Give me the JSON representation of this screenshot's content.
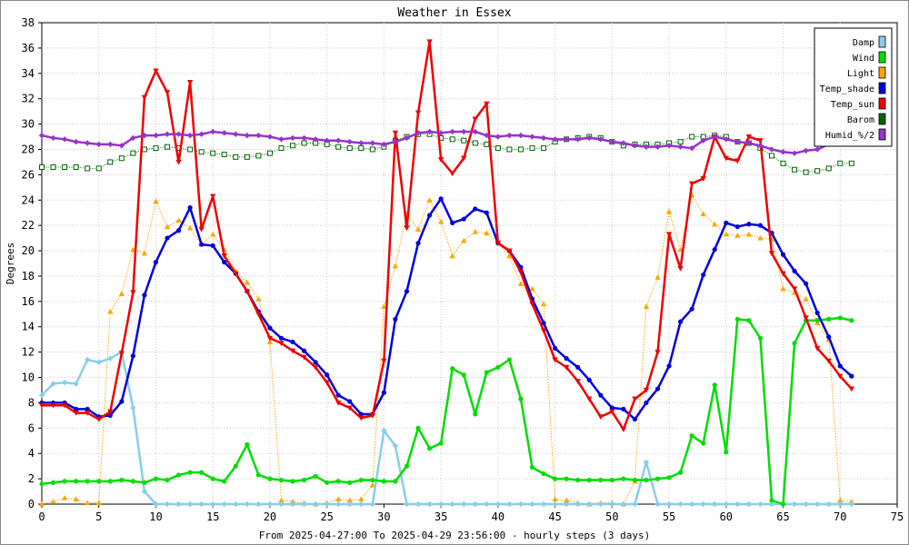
{
  "chart_data": {
    "type": "line",
    "title": "Weather in Essex",
    "xlabel": "From 2025-04-27:00 To 2025-04-29 23:56:00 - hourly steps (3 days)",
    "ylabel": "Degrees",
    "xlim": [
      0,
      75
    ],
    "ylim": [
      0,
      38
    ],
    "xticks": [
      0,
      5,
      10,
      15,
      20,
      25,
      30,
      35,
      40,
      45,
      50,
      55,
      60,
      65,
      70,
      75
    ],
    "yticks": [
      0,
      2,
      4,
      6,
      8,
      10,
      12,
      14,
      16,
      18,
      20,
      22,
      24,
      26,
      28,
      30,
      32,
      34,
      36,
      38
    ],
    "grid": true,
    "legend_position": "top-right",
    "x": [
      0,
      1,
      2,
      3,
      4,
      5,
      6,
      7,
      8,
      9,
      10,
      11,
      12,
      13,
      14,
      15,
      16,
      17,
      18,
      19,
      20,
      21,
      22,
      23,
      24,
      25,
      26,
      27,
      28,
      29,
      30,
      31,
      32,
      33,
      34,
      35,
      36,
      37,
      38,
      39,
      40,
      41,
      42,
      43,
      44,
      45,
      46,
      47,
      48,
      49,
      50,
      51,
      52,
      53,
      54,
      55,
      56,
      57,
      58,
      59,
      60,
      61,
      62,
      63,
      64,
      65,
      66,
      67,
      68,
      69,
      70,
      71
    ],
    "series": [
      {
        "name": "Damp",
        "color": "#87ceeb",
        "marker": "diamond",
        "values": [
          8.6,
          9.5,
          9.6,
          9.5,
          11.4,
          11.2,
          11.5,
          12.0,
          7.6,
          1.0,
          0,
          0,
          0,
          0,
          0,
          0,
          0,
          0,
          0,
          0,
          0,
          0,
          0,
          0,
          0,
          0,
          0,
          0,
          0,
          0,
          5.8,
          4.6,
          0,
          0,
          0,
          0,
          0,
          0,
          0,
          0,
          0,
          0,
          0,
          0,
          0,
          0,
          0,
          0,
          0,
          0,
          0,
          0,
          0,
          3.3,
          0,
          0,
          0,
          0,
          0,
          0,
          0,
          0,
          0,
          0,
          0,
          0,
          0,
          0,
          0,
          0,
          0,
          0
        ]
      },
      {
        "name": "Wind",
        "color": "#00dd00",
        "marker": "circle",
        "values": [
          1.6,
          1.7,
          1.8,
          1.8,
          1.8,
          1.8,
          1.8,
          1.9,
          1.8,
          1.7,
          2.0,
          1.9,
          2.3,
          2.5,
          2.5,
          2.0,
          1.8,
          3.0,
          4.7,
          2.3,
          2.0,
          1.9,
          1.8,
          1.9,
          2.2,
          1.7,
          1.8,
          1.7,
          1.9,
          1.9,
          1.8,
          1.8,
          3.0,
          6.0,
          4.4,
          4.8,
          10.7,
          10.2,
          7.1,
          10.4,
          10.8,
          11.4,
          8.3,
          2.9,
          2.4,
          2.0,
          2.0,
          1.9,
          1.9,
          1.9,
          1.9,
          2.0,
          1.9,
          1.9,
          2.0,
          2.1,
          2.5,
          5.4,
          4.8,
          9.4,
          4.1,
          14.6,
          14.5,
          13.1,
          0.3,
          0.0,
          12.7,
          14.5,
          14.5,
          14.6,
          14.7,
          14.5
        ]
      },
      {
        "name": "Light",
        "color": "#ffa500",
        "marker": "triangle",
        "values": [
          0,
          0.2,
          0.5,
          0.4,
          0.1,
          0.1,
          15.2,
          16.6,
          20.1,
          19.8,
          23.9,
          21.9,
          22.4,
          21.8,
          20.5,
          21.3,
          20.1,
          18.4,
          17.5,
          16.2,
          12.8,
          0.3,
          0.2,
          0.1,
          0,
          0.1,
          0.4,
          0.3,
          0.4,
          1.5,
          15.6,
          18.8,
          22.9,
          21.7,
          24.0,
          22.3,
          19.6,
          20.8,
          21.5,
          21.4,
          20.7,
          19.6,
          17.4,
          17.0,
          15.8,
          0.4,
          0.3,
          0.1,
          0,
          0.1,
          0.1,
          0,
          1.8,
          15.6,
          17.9,
          23.1,
          20.1,
          24.4,
          22.9,
          22.1,
          21.3,
          21.2,
          21.3,
          21.0,
          20.9,
          17.0,
          16.7,
          16.2,
          14.3,
          13.0,
          0.3,
          0.2
        ]
      },
      {
        "name": "Temp_shade",
        "color": "#0000dd",
        "marker": "circle",
        "values": [
          8.0,
          8.0,
          8.0,
          7.5,
          7.5,
          6.9,
          7.0,
          8.1,
          11.7,
          16.5,
          19.1,
          21.0,
          21.6,
          23.4,
          20.5,
          20.4,
          19.1,
          18.2,
          16.8,
          15.2,
          13.9,
          13.1,
          12.8,
          12.1,
          11.2,
          10.2,
          8.6,
          8.1,
          7.1,
          7.1,
          8.8,
          14.6,
          16.8,
          20.6,
          22.8,
          24.1,
          22.2,
          22.5,
          23.3,
          23.0,
          20.6,
          20.0,
          18.7,
          16.2,
          14.3,
          12.3,
          11.5,
          10.8,
          9.8,
          8.6,
          7.6,
          7.5,
          6.7,
          8.0,
          9.1,
          10.9,
          14.4,
          15.4,
          18.1,
          20.1,
          22.2,
          21.9,
          22.1,
          22.0,
          21.4,
          19.7,
          18.4,
          17.4,
          15.1,
          13.2,
          10.9,
          10.1
        ]
      },
      {
        "name": "Temp_sun",
        "color": "#ee0000",
        "marker": "triangle-down",
        "values": [
          7.8,
          7.8,
          7.8,
          7.2,
          7.2,
          6.7,
          7.3,
          11.9,
          16.7,
          32.1,
          34.2,
          32.5,
          27.0,
          33.3,
          21.7,
          24.3,
          19.6,
          18.2,
          16.8,
          15.0,
          13.1,
          12.7,
          12.1,
          11.6,
          10.8,
          9.6,
          8.0,
          7.6,
          6.8,
          7.0,
          11.3,
          29.3,
          21.8,
          30.9,
          36.5,
          27.2,
          26.1,
          27.3,
          30.4,
          31.6,
          20.6,
          20.0,
          18.3,
          15.8,
          13.7,
          11.4,
          10.8,
          9.7,
          8.3,
          6.9,
          7.3,
          5.9,
          8.3,
          9.0,
          12.0,
          21.3,
          18.6,
          25.3,
          25.7,
          29.0,
          27.3,
          27.1,
          29.0,
          28.7,
          19.8,
          18.2,
          17.0,
          14.7,
          12.3,
          11.3,
          10.1,
          9.1
        ]
      },
      {
        "name": "Barom",
        "color": "#006600",
        "marker": "square-hollow",
        "values": [
          26.6,
          26.6,
          26.6,
          26.6,
          26.5,
          26.5,
          27.0,
          27.3,
          27.7,
          28.0,
          28.1,
          28.2,
          28.1,
          28.0,
          27.8,
          27.7,
          27.6,
          27.4,
          27.4,
          27.5,
          27.7,
          28.1,
          28.3,
          28.5,
          28.5,
          28.4,
          28.2,
          28.1,
          28.1,
          28.0,
          28.2,
          28.7,
          29.0,
          29.2,
          29.2,
          28.9,
          28.8,
          28.7,
          28.5,
          28.4,
          28.1,
          28.0,
          28.0,
          28.1,
          28.1,
          28.6,
          28.8,
          28.9,
          29.0,
          28.9,
          28.6,
          28.3,
          28.4,
          28.4,
          28.4,
          28.5,
          28.6,
          29.0,
          29.0,
          29.1,
          29.0,
          28.6,
          28.5,
          28.1,
          27.5,
          26.9,
          26.4,
          26.2,
          26.3,
          26.5,
          26.9,
          26.9
        ]
      },
      {
        "name": "Humid_%/2",
        "color": "#9932cc",
        "marker": "diamond",
        "values": [
          29.1,
          28.9,
          28.8,
          28.6,
          28.5,
          28.4,
          28.4,
          28.3,
          28.9,
          29.1,
          29.1,
          29.2,
          29.2,
          29.1,
          29.2,
          29.4,
          29.3,
          29.2,
          29.1,
          29.1,
          29.0,
          28.8,
          28.9,
          28.9,
          28.8,
          28.7,
          28.7,
          28.6,
          28.5,
          28.5,
          28.4,
          28.6,
          28.9,
          29.3,
          29.4,
          29.3,
          29.4,
          29.4,
          29.4,
          29.1,
          29.0,
          29.1,
          29.1,
          29.0,
          28.9,
          28.8,
          28.8,
          28.8,
          28.9,
          28.8,
          28.6,
          28.5,
          28.3,
          28.2,
          28.2,
          28.3,
          28.2,
          28.1,
          28.7,
          29.0,
          28.8,
          28.6,
          28.5,
          28.3,
          28.0,
          27.8,
          27.7,
          27.9,
          28.0,
          28.4,
          28.9,
          29.1
        ]
      }
    ]
  }
}
